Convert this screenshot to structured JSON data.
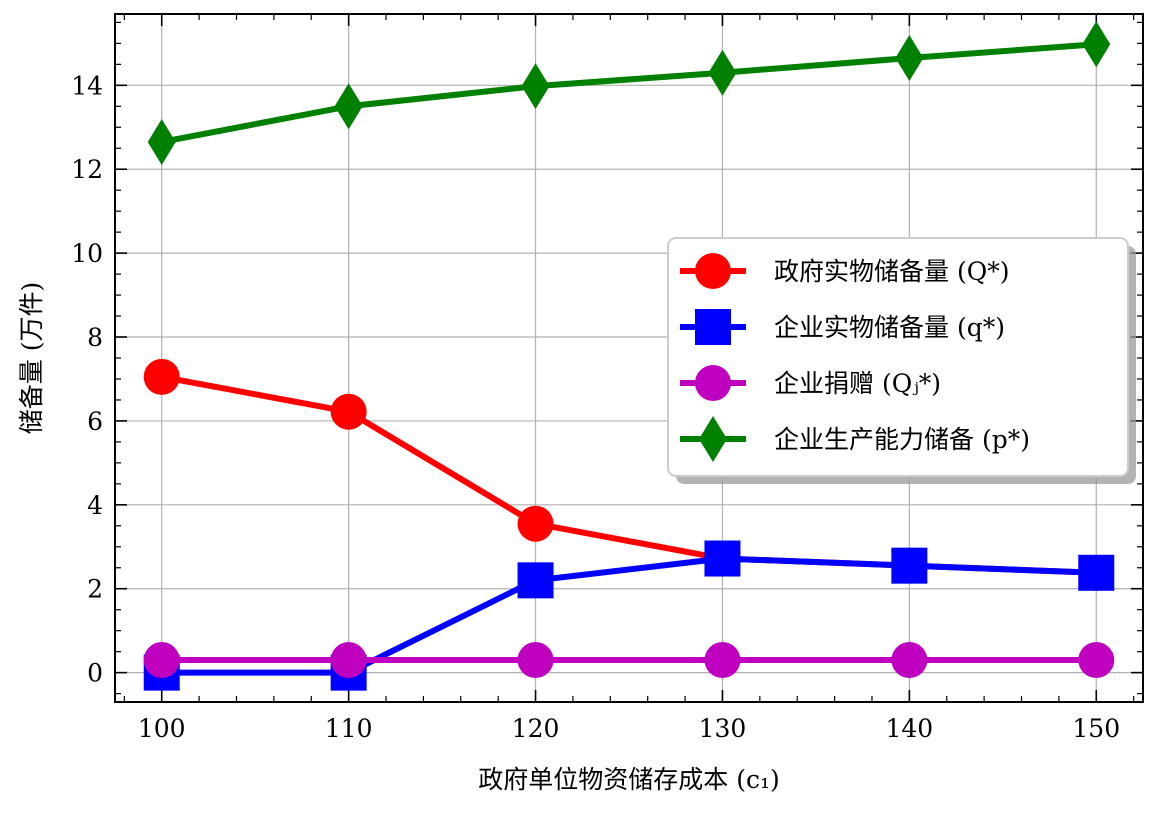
{
  "chart_data": {
    "type": "line",
    "x": [
      100,
      110,
      120,
      130,
      140,
      150
    ],
    "xlabel": "政府单位物资储存成本 (c₁)",
    "ylabel": "储备量 (万件)",
    "xlim": [
      97.5,
      152.5
    ],
    "ylim": [
      -0.7,
      15.7
    ],
    "xticks": [
      100,
      110,
      120,
      130,
      140,
      150
    ],
    "yticks": [
      0,
      2,
      4,
      6,
      8,
      10,
      12,
      14
    ],
    "grid": true,
    "legend_position": "right",
    "series": [
      {
        "name": "政府实物储备量 (Q*)",
        "color": "#ff0000",
        "marker": "circle",
        "values": [
          7.05,
          6.22,
          3.55,
          2.72,
          2.55,
          2.38
        ]
      },
      {
        "name": "企业实物储备量 (q*)",
        "color": "#0000ff",
        "marker": "square",
        "values": [
          0.0,
          0.0,
          2.2,
          2.72,
          2.55,
          2.38
        ]
      },
      {
        "name": "企业捐赠 (Qⱼ*)",
        "color": "#bf00bf",
        "marker": "circle",
        "values": [
          0.3,
          0.3,
          0.3,
          0.3,
          0.3,
          0.3
        ]
      },
      {
        "name": "企业生产能力储备 (p*)",
        "color": "#008000",
        "marker": "diamond",
        "values": [
          12.65,
          13.5,
          13.98,
          14.3,
          14.65,
          14.98
        ]
      }
    ]
  }
}
